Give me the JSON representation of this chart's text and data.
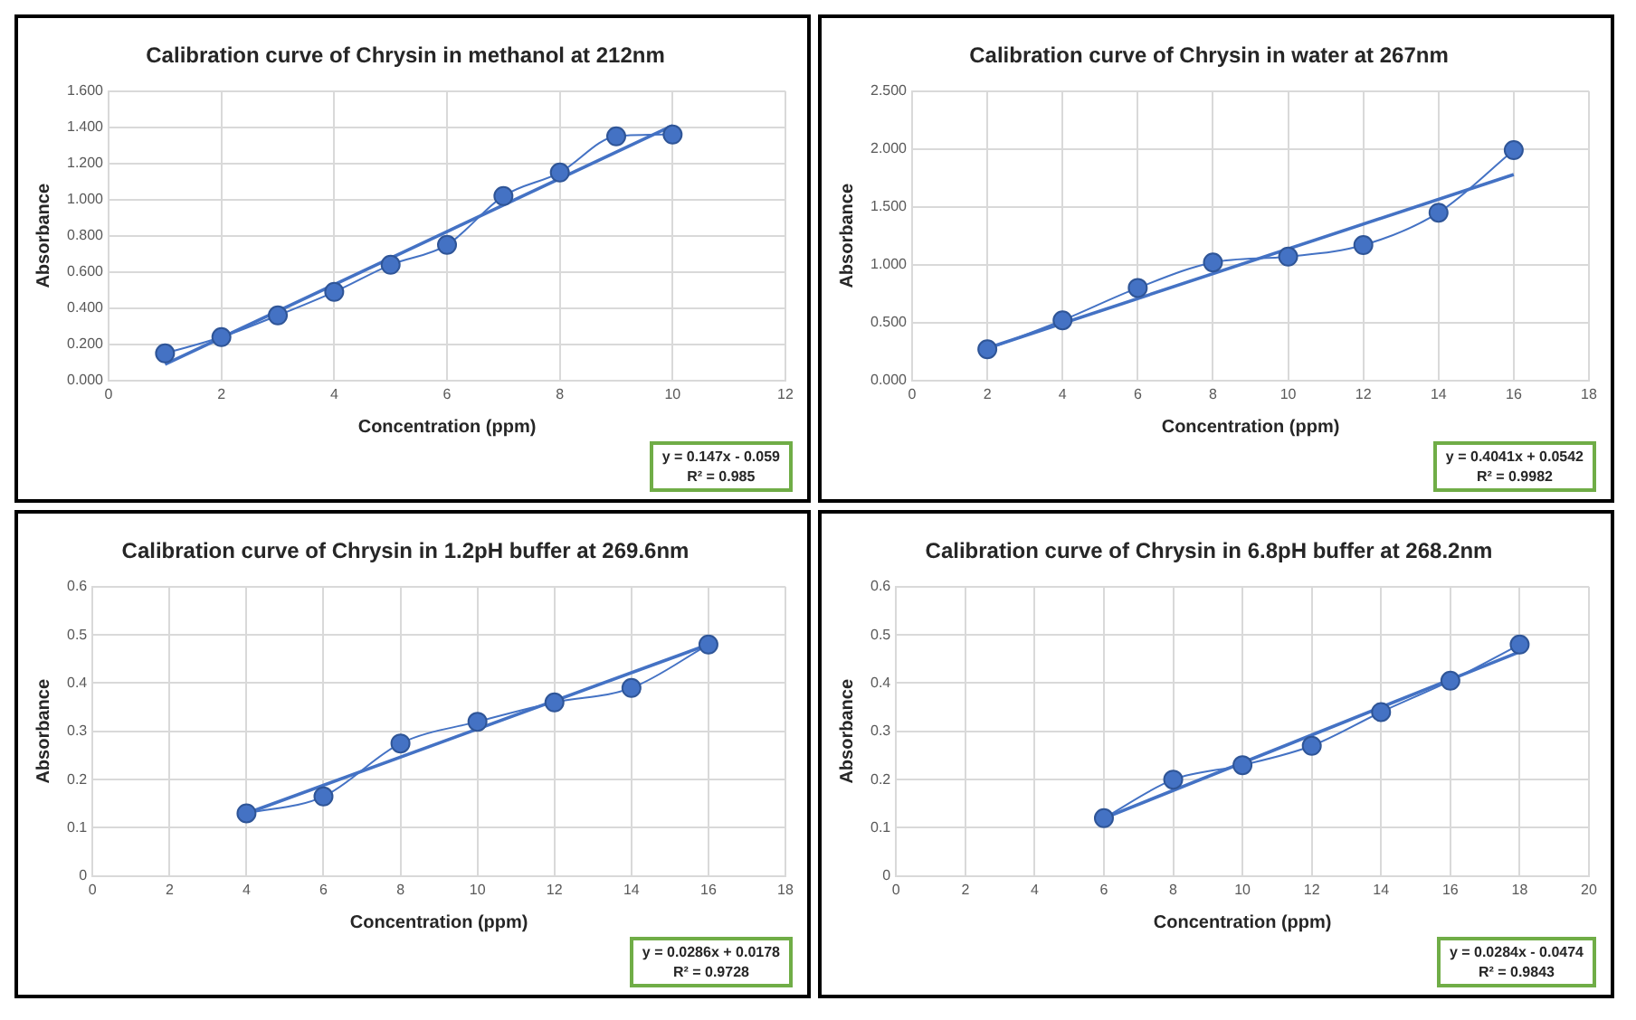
{
  "chart_data": [
    {
      "type": "line",
      "title": "Calibration curve of Chrysin in methanol at 212nm",
      "xlabel": "Concentration (ppm)",
      "ylabel": "Absorbance",
      "xlim": [
        0,
        12
      ],
      "xticks": [
        0,
        2,
        4,
        6,
        8,
        10,
        12
      ],
      "ylim": [
        0,
        1.6
      ],
      "yticks": [
        {
          "value": 0,
          "label": "0.000"
        },
        {
          "value": 0.2,
          "label": "0.200"
        },
        {
          "value": 0.4,
          "label": "0.400"
        },
        {
          "value": 0.6,
          "label": "0.600"
        },
        {
          "value": 0.8,
          "label": "0.800"
        },
        {
          "value": 1,
          "label": "1.000"
        },
        {
          "value": 1.2,
          "label": "1.200"
        },
        {
          "value": 1.4,
          "label": "1.400"
        },
        {
          "value": 1.6,
          "label": "1.600"
        }
      ],
      "grid": true,
      "legend": false,
      "annotations": [
        "y = 0.147x - 0.059",
        "R² = 0.985"
      ],
      "series": [
        {
          "color": "#4472c4",
          "marker": "circle",
          "x": [
            1,
            2,
            3,
            4,
            5,
            6,
            7,
            8,
            9,
            10
          ],
          "values": [
            0.15,
            0.24,
            0.36,
            0.49,
            0.64,
            0.75,
            1.02,
            1.15,
            1.35,
            1.36
          ]
        },
        {
          "color": "#4472c4",
          "marker": "none",
          "x": [
            1,
            10
          ],
          "values": [
            0.09,
            1.41
          ]
        }
      ]
    },
    {
      "type": "line",
      "title": "Calibration curve of Chrysin in water at 267nm",
      "xlabel": "Concentration (ppm)",
      "ylabel": "Absorbance",
      "xlim": [
        0,
        18
      ],
      "xticks": [
        0,
        2,
        4,
        6,
        8,
        10,
        12,
        14,
        16,
        18
      ],
      "ylim": [
        0,
        2.5
      ],
      "yticks": [
        {
          "value": 0,
          "label": "0.000"
        },
        {
          "value": 0.5,
          "label": "0.500"
        },
        {
          "value": 1,
          "label": "1.000"
        },
        {
          "value": 1.5,
          "label": "1.500"
        },
        {
          "value": 2,
          "label": "2.000"
        },
        {
          "value": 2.5,
          "label": "2.500"
        }
      ],
      "grid": true,
      "legend": false,
      "annotations": [
        "y = 0.4041x + 0.0542",
        "R² = 0.9982"
      ],
      "series": [
        {
          "color": "#4472c4",
          "marker": "circle",
          "x": [
            2,
            4,
            6,
            8,
            10,
            12,
            14,
            16
          ],
          "values": [
            0.27,
            0.52,
            0.8,
            1.02,
            1.07,
            1.17,
            1.45,
            1.99
          ]
        },
        {
          "color": "#4472c4",
          "marker": "none",
          "x": [
            2,
            16
          ],
          "values": [
            0.28,
            1.78
          ]
        }
      ]
    },
    {
      "type": "line",
      "title": "Calibration curve of Chrysin in 1.2pH buffer at 269.6nm",
      "xlabel": "Concentration (ppm)",
      "ylabel": "Absorbance",
      "xlim": [
        0,
        18
      ],
      "xticks": [
        0,
        2,
        4,
        6,
        8,
        10,
        12,
        14,
        16,
        18
      ],
      "ylim": [
        0,
        0.6
      ],
      "yticks": [
        0,
        0.1,
        0.2,
        0.3,
        0.4,
        0.5,
        0.6
      ],
      "grid": true,
      "legend": false,
      "annotations": [
        "y = 0.0286x + 0.0178",
        "R² = 0.9728"
      ],
      "series": [
        {
          "color": "#4472c4",
          "marker": "circle",
          "x": [
            4,
            6,
            8,
            10,
            12,
            14,
            16
          ],
          "values": [
            0.13,
            0.165,
            0.275,
            0.32,
            0.36,
            0.39,
            0.48
          ]
        },
        {
          "color": "#4472c4",
          "marker": "none",
          "x": [
            4,
            16
          ],
          "values": [
            0.13,
            0.48
          ]
        }
      ]
    },
    {
      "type": "line",
      "title": "Calibration curve of Chrysin in 6.8pH buffer at 268.2nm",
      "xlabel": "Concentration (ppm)",
      "ylabel": "Absorbance",
      "xlim": [
        0,
        20
      ],
      "xticks": [
        0,
        2,
        4,
        6,
        8,
        10,
        12,
        14,
        16,
        18,
        20
      ],
      "ylim": [
        0,
        0.6
      ],
      "yticks": [
        0,
        0.1,
        0.2,
        0.3,
        0.4,
        0.5,
        0.6
      ],
      "grid": true,
      "legend": false,
      "annotations": [
        "y = 0.0284x - 0.0474",
        "R² = 0.9843"
      ],
      "series": [
        {
          "color": "#4472c4",
          "marker": "circle",
          "x": [
            6,
            8,
            10,
            12,
            14,
            16,
            18
          ],
          "values": [
            0.12,
            0.2,
            0.23,
            0.27,
            0.34,
            0.405,
            0.48
          ]
        },
        {
          "color": "#4472c4",
          "marker": "none",
          "x": [
            6,
            18
          ],
          "values": [
            0.12,
            0.465
          ]
        }
      ]
    }
  ]
}
